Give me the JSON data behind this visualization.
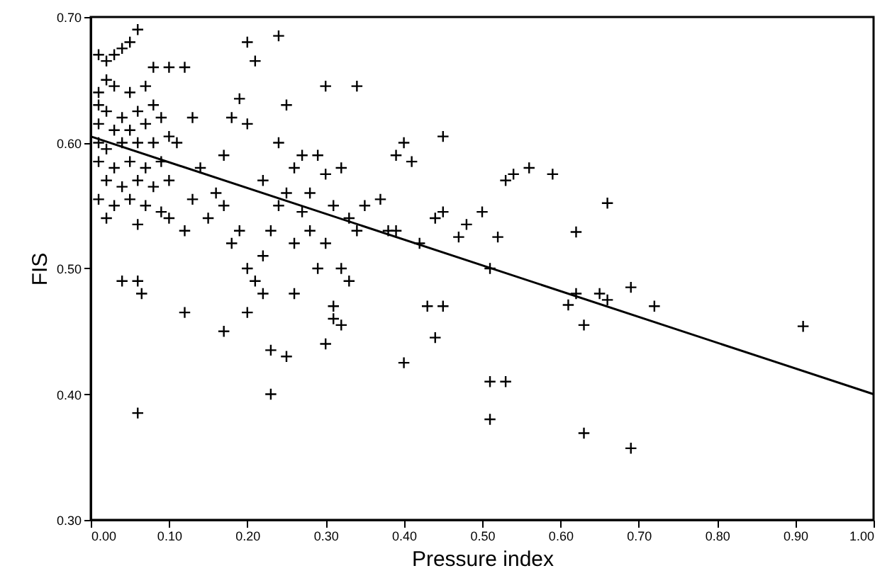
{
  "chart_data": {
    "type": "scatter",
    "xlabel": "Pressure index",
    "ylabel": "FIS",
    "xlim": [
      0,
      1
    ],
    "ylim": [
      0.3,
      0.7
    ],
    "xticks": [
      {
        "value": 0,
        "label": "0.00"
      },
      {
        "value": 0.1,
        "label": "0.10"
      },
      {
        "value": 0.2,
        "label": "0.20"
      },
      {
        "value": 0.3,
        "label": "0.30"
      },
      {
        "value": 0.4,
        "label": "0.40"
      },
      {
        "value": 0.5,
        "label": "0.50"
      },
      {
        "value": 0.6,
        "label": "0.60"
      },
      {
        "value": 0.7,
        "label": "0.70"
      },
      {
        "value": 0.8,
        "label": "0.80"
      },
      {
        "value": 0.9,
        "label": "0.90"
      },
      {
        "value": 1,
        "label": "1.00"
      }
    ],
    "yticks": [
      {
        "value": 0.3,
        "label": "0.30"
      },
      {
        "value": 0.4,
        "label": "0.40"
      },
      {
        "value": 0.5,
        "label": "0.50"
      },
      {
        "value": 0.6,
        "label": "0.60"
      },
      {
        "value": 0.7,
        "label": "0.70"
      }
    ],
    "grid": false,
    "series": [
      {
        "color": "#000000",
        "marker": "cross",
        "x": [
          0.01,
          0.02,
          0.03,
          0.04,
          0.05,
          0.06,
          0.02,
          0.01,
          0.03,
          0.05,
          0.07,
          0.01,
          0.02,
          0.04,
          0.06,
          0.08,
          0.01,
          0.03,
          0.05,
          0.07,
          0.09,
          0.01,
          0.02,
          0.04,
          0.06,
          0.08,
          0.1,
          0.01,
          0.03,
          0.05,
          0.07,
          0.09,
          0.02,
          0.04,
          0.06,
          0.08,
          0.1,
          0.01,
          0.03,
          0.05,
          0.07,
          0.09,
          0.02,
          0.06,
          0.1,
          0.04,
          0.06,
          0.065,
          0.06,
          0.1,
          0.12,
          0.13,
          0.11,
          0.14,
          0.13,
          0.15,
          0.12,
          0.16,
          0.17,
          0.18,
          0.19,
          0.2,
          0.17,
          0.18,
          0.19,
          0.2,
          0.21,
          0.22,
          0.23,
          0.24,
          0.22,
          0.24,
          0.25,
          0.26,
          0.25,
          0.27,
          0.26,
          0.28,
          0.27,
          0.29,
          0.28,
          0.29,
          0.3,
          0.31,
          0.3,
          0.32,
          0.33,
          0.32,
          0.33,
          0.31,
          0.32,
          0.34,
          0.35,
          0.22,
          0.26,
          0.25,
          0.23,
          0.23,
          0.2,
          0.12,
          0.17,
          0.3,
          0.31,
          0.3,
          0.34,
          0.24,
          0.2,
          0.21,
          0.08,
          0.37,
          0.38,
          0.39,
          0.4,
          0.41,
          0.39,
          0.42,
          0.44,
          0.45,
          0.43,
          0.45,
          0.44,
          0.4,
          0.45,
          0.47,
          0.48,
          0.5,
          0.51,
          0.52,
          0.51,
          0.53,
          0.51,
          0.53,
          0.54,
          0.56,
          0.59,
          0.62,
          0.61,
          0.62,
          0.63,
          0.65,
          0.66,
          0.66,
          0.69,
          0.72,
          0.63,
          0.69,
          0.91
        ],
        "values": [
          0.67,
          0.665,
          0.67,
          0.675,
          0.68,
          0.69,
          0.65,
          0.64,
          0.645,
          0.64,
          0.645,
          0.63,
          0.625,
          0.62,
          0.625,
          0.63,
          0.615,
          0.61,
          0.61,
          0.615,
          0.62,
          0.6,
          0.595,
          0.6,
          0.6,
          0.6,
          0.605,
          0.585,
          0.58,
          0.585,
          0.58,
          0.585,
          0.57,
          0.565,
          0.57,
          0.565,
          0.57,
          0.555,
          0.55,
          0.555,
          0.55,
          0.545,
          0.54,
          0.535,
          0.54,
          0.49,
          0.49,
          0.48,
          0.385,
          0.66,
          0.66,
          0.62,
          0.6,
          0.58,
          0.555,
          0.54,
          0.53,
          0.56,
          0.59,
          0.62,
          0.635,
          0.615,
          0.55,
          0.52,
          0.53,
          0.5,
          0.49,
          0.51,
          0.53,
          0.55,
          0.57,
          0.6,
          0.63,
          0.58,
          0.56,
          0.545,
          0.52,
          0.56,
          0.59,
          0.59,
          0.53,
          0.5,
          0.52,
          0.55,
          0.575,
          0.58,
          0.54,
          0.5,
          0.49,
          0.47,
          0.455,
          0.53,
          0.55,
          0.48,
          0.48,
          0.43,
          0.435,
          0.4,
          0.465,
          0.465,
          0.45,
          0.44,
          0.46,
          0.645,
          0.645,
          0.685,
          0.68,
          0.665,
          0.66,
          0.555,
          0.53,
          0.59,
          0.6,
          0.585,
          0.53,
          0.52,
          0.54,
          0.545,
          0.47,
          0.47,
          0.445,
          0.425,
          0.605,
          0.525,
          0.535,
          0.545,
          0.5,
          0.525,
          0.41,
          0.41,
          0.38,
          0.57,
          0.575,
          0.58,
          0.575,
          0.529,
          0.471,
          0.48,
          0.455,
          0.48,
          0.475,
          0.552,
          0.485,
          0.47,
          0.369,
          0.357,
          0.454
        ]
      },
      {
        "type": "line",
        "color": "#000000",
        "x": [
          0,
          1
        ],
        "values": [
          0.605,
          0.4
        ]
      }
    ]
  }
}
